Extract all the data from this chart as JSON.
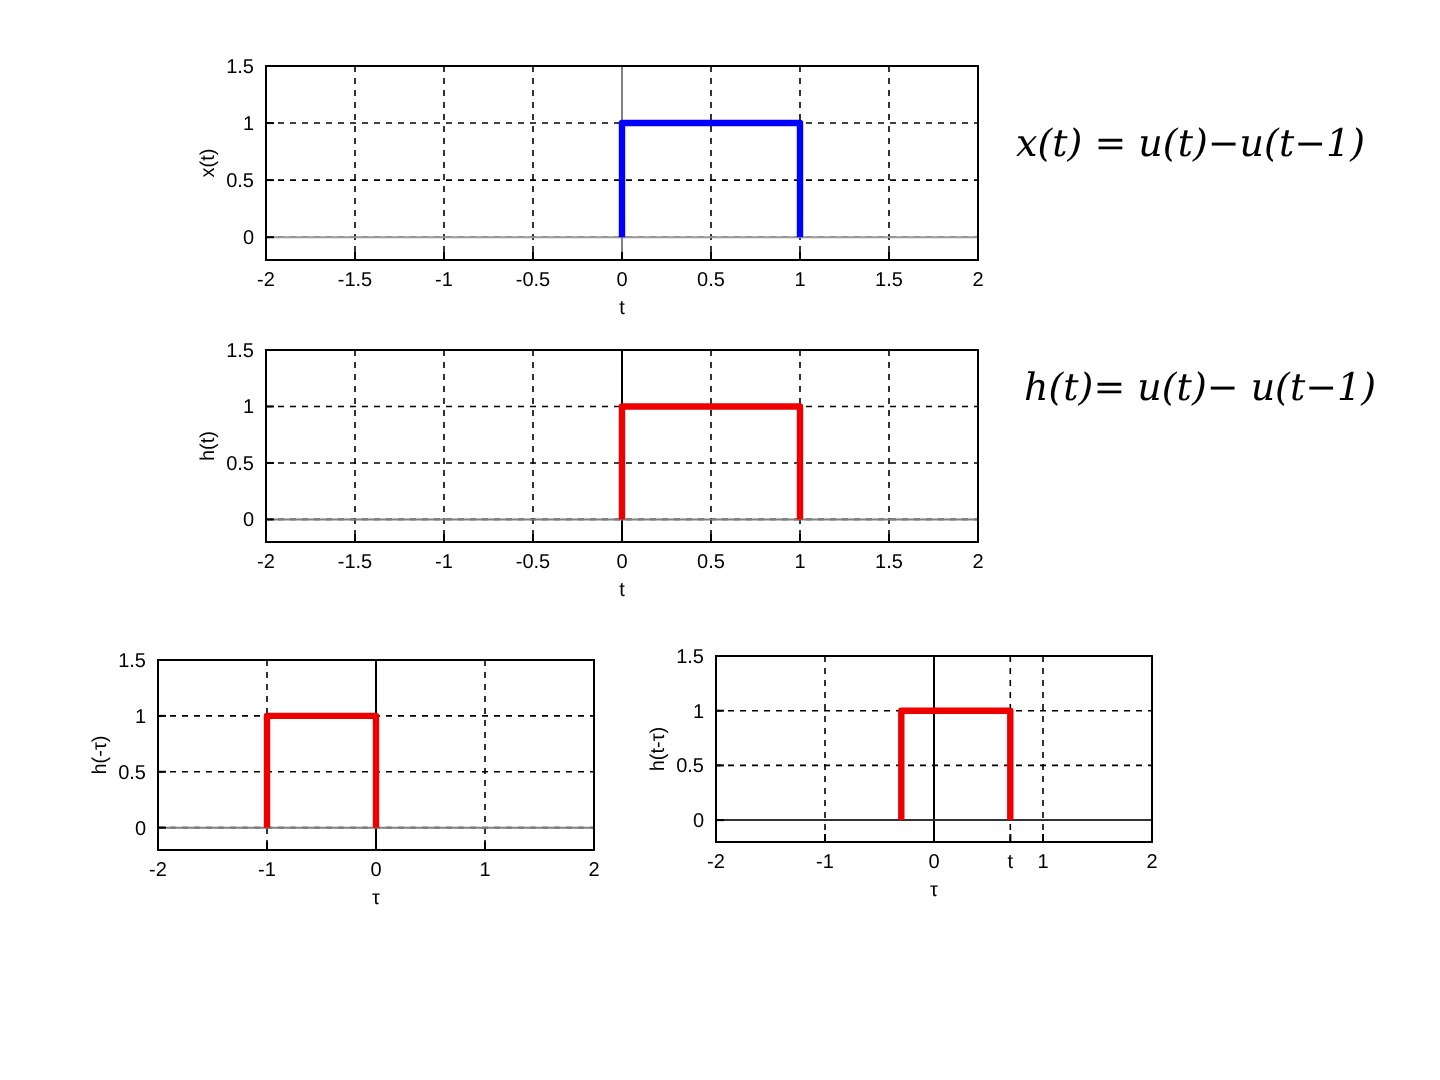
{
  "chart_data": [
    {
      "type": "line",
      "xlabel": "t",
      "ylabel": "x(t)",
      "xlim": [
        -2,
        2
      ],
      "ylim": [
        -0.2,
        1.5
      ],
      "xticks": [
        -2,
        -1.5,
        -1,
        -0.5,
        0,
        0.5,
        1,
        1.5,
        2
      ],
      "yticks": [
        0,
        0.5,
        1,
        1.5
      ],
      "grid": true,
      "ref_lines": [
        {
          "axis": "x",
          "value": 0,
          "color": "#808080"
        },
        {
          "axis": "y",
          "value": 0,
          "color": "#999999"
        }
      ],
      "series": [
        {
          "color": "#0000ff",
          "x": [
            0,
            0,
            1,
            1
          ],
          "values": [
            0,
            1,
            1,
            0
          ]
        }
      ],
      "annotations": [
        "x(t) = u(t)−u(t−1)"
      ]
    },
    {
      "type": "line",
      "xlabel": "t",
      "ylabel": "h(t)",
      "xlim": [
        -2,
        2
      ],
      "ylim": [
        -0.2,
        1.5
      ],
      "xticks": [
        -2,
        -1.5,
        -1,
        -0.5,
        0,
        0.5,
        1,
        1.5,
        2
      ],
      "yticks": [
        0,
        0.5,
        1,
        1.5
      ],
      "grid": true,
      "ref_lines": [
        {
          "axis": "x",
          "value": 0,
          "color": "#000000"
        },
        {
          "axis": "y",
          "value": 0,
          "color": "#808080"
        }
      ],
      "series": [
        {
          "color": "#ee0000",
          "x": [
            0,
            0,
            1,
            1
          ],
          "values": [
            0,
            1,
            1,
            0
          ]
        }
      ],
      "annotations": [
        "h(t)= u(t)− u(t−1)"
      ]
    },
    {
      "type": "line",
      "xlabel": "τ",
      "ylabel": "h(-τ)",
      "xlim": [
        -2,
        2
      ],
      "ylim": [
        -0.2,
        1.5
      ],
      "xticks": [
        -2,
        -1,
        0,
        1,
        2
      ],
      "yticks": [
        0,
        0.5,
        1,
        1.5
      ],
      "grid": true,
      "ref_lines": [
        {
          "axis": "x",
          "value": 0,
          "color": "#000000"
        },
        {
          "axis": "y",
          "value": 0,
          "color": "#808080"
        }
      ],
      "series": [
        {
          "color": "#ee0000",
          "x": [
            -1,
            -1,
            0,
            0
          ],
          "values": [
            0,
            1,
            1,
            0
          ]
        }
      ]
    },
    {
      "type": "line",
      "xlabel": "τ",
      "ylabel": "h(t-τ)",
      "xlim": [
        -2,
        2
      ],
      "ylim": [
        -0.2,
        1.5
      ],
      "xticks": [
        -2,
        -1,
        0,
        {
          "value": 0.7,
          "label": "t"
        },
        1,
        2
      ],
      "yticks": [
        0,
        0.5,
        1,
        1.5
      ],
      "grid": true,
      "ref_lines": [
        {
          "axis": "x",
          "value": 0,
          "color": "#000000"
        },
        {
          "axis": "y",
          "value": 0,
          "color": "#333333"
        }
      ],
      "series": [
        {
          "color": "#ee0000",
          "x": [
            -0.3,
            -0.3,
            0.7,
            0.7
          ],
          "values": [
            0,
            1,
            1,
            0
          ]
        }
      ]
    }
  ]
}
